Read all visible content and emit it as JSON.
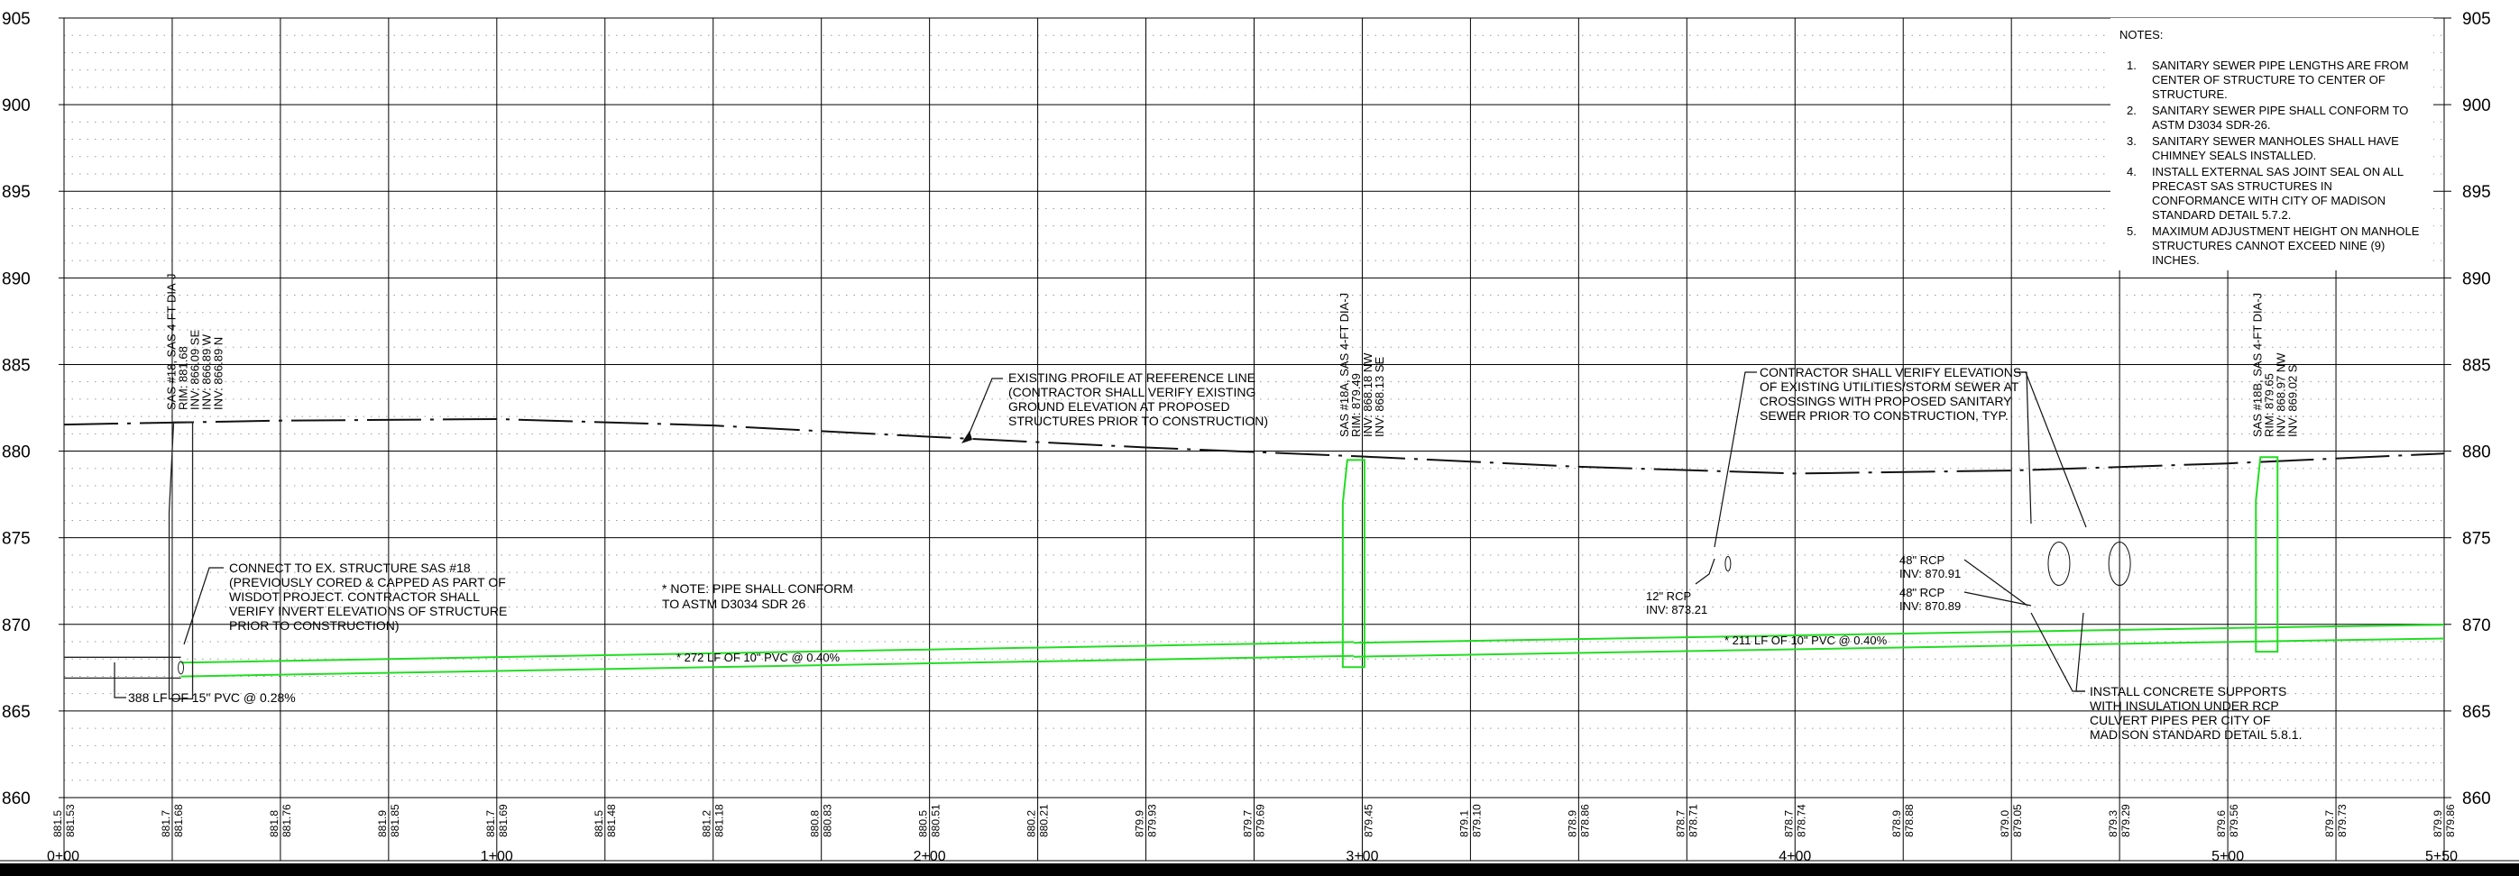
{
  "axis": {
    "y_values": [
      905,
      900,
      895,
      890,
      885,
      880,
      875,
      870,
      865,
      860
    ],
    "x_labels": [
      "0+00",
      "1+00",
      "2+00",
      "3+00",
      "4+00",
      "5+00",
      "5+50"
    ],
    "bottom_pairs": [
      [
        "881.5",
        "881.53"
      ],
      [
        "881.7",
        "881.68"
      ],
      [
        "881.8",
        "881.76"
      ],
      [
        "881.9",
        "881.85"
      ],
      [
        "881.7",
        "881.69"
      ],
      [
        "881.5",
        "881.48"
      ],
      [
        "881.2",
        "881.18"
      ],
      [
        "880.8",
        "880.83"
      ],
      [
        "880.5",
        "880.51"
      ],
      [
        "880.2",
        "880.21"
      ],
      [
        "879.9",
        "879.93"
      ],
      [
        "879.7",
        "879.69"
      ],
      [
        "",
        "879.45"
      ],
      [
        "879.1",
        "879.10"
      ],
      [
        "878.9",
        "878.86"
      ],
      [
        "878.7",
        "878.71"
      ],
      [
        "878.7",
        "878.74"
      ],
      [
        "878.9",
        "878.88"
      ],
      [
        "879.0",
        "879.05"
      ],
      [
        "879.3",
        "879.29"
      ],
      [
        "879.6",
        "879.56"
      ],
      [
        "879.7",
        "879.73"
      ],
      [
        "879.9",
        "879.86"
      ]
    ]
  },
  "chart_data": {
    "type": "line",
    "x_unit": "station (ft)",
    "y_unit": "elevation (ft)",
    "xlim": [
      0,
      550
    ],
    "ylim": [
      860,
      905
    ],
    "grid": true,
    "series": [
      {
        "name": "existing-ground",
        "style": "dashed",
        "x": [
          0,
          50,
          100,
          150,
          200,
          250,
          300,
          350,
          400,
          450,
          500,
          550
        ],
        "y": [
          881.53,
          881.76,
          881.85,
          881.48,
          880.83,
          880.21,
          879.69,
          879.1,
          878.71,
          878.88,
          879.29,
          879.86
        ]
      },
      {
        "name": "pipe-15in-top",
        "style": "thin",
        "x": [
          0,
          27
        ],
        "y": [
          868.1,
          868.1
        ]
      },
      {
        "name": "pipe-15in-bottom",
        "style": "thin",
        "x": [
          0,
          27
        ],
        "y": [
          866.9,
          866.9
        ]
      },
      {
        "name": "pipe-10in-272-top",
        "style": "green",
        "x": [
          27,
          298
        ],
        "y": [
          867.79,
          868.98
        ]
      },
      {
        "name": "pipe-10in-272-invert",
        "style": "green",
        "x": [
          27,
          298
        ],
        "y": [
          866.99,
          868.18
        ]
      },
      {
        "name": "pipe-10in-211-top",
        "style": "green",
        "x": [
          298,
          509
        ],
        "y": [
          868.93,
          869.82
        ]
      },
      {
        "name": "pipe-10in-211-invert",
        "style": "green",
        "x": [
          298,
          509
        ],
        "y": [
          868.13,
          869.02
        ]
      },
      {
        "name": "pipe-10in-ext-top",
        "style": "green",
        "x": [
          509,
          550
        ],
        "y": [
          869.82,
          869.98
        ]
      },
      {
        "name": "pipe-10in-ext-invert",
        "style": "green",
        "x": [
          509,
          550
        ],
        "y": [
          869.02,
          869.18
        ]
      }
    ]
  },
  "structures": [
    {
      "id": "sas18",
      "lines": [
        "SAS #18, SAS 4-FT DIA-J",
        "RIM: 881.68",
        "INV: 866.09 SE",
        "INV: 866.89 W",
        "INV: 866.89 N"
      ]
    },
    {
      "id": "sas18a",
      "lines": [
        "SAS #18A, SAS 4-FT DIA-J",
        "RIM: 879.49",
        "INV: 868.18 NW",
        "INV: 868.13 SE"
      ]
    },
    {
      "id": "sas18b",
      "lines": [
        "SAS #18B, SAS 4-FT DIA-J",
        "RIM: 879.65",
        "INV: 868.97 NW",
        "INV: 869.02 S"
      ]
    }
  ],
  "annotations": {
    "existing_profile": [
      "EXISTING PROFILE AT REFERENCE LINE",
      "(CONTRACTOR SHALL VERIFY EXISTING",
      "GROUND ELEVATION AT PROPOSED",
      "STRUCTURES PRIOR TO CONSTRUCTION)"
    ],
    "connect": [
      "CONNECT TO EX. STRUCTURE SAS #18",
      "(PREVIOUSLY CORED & CAPPED AS PART OF",
      "WISDOT PROJECT.  CONTRACTOR SHALL",
      "VERIFY INVERT ELEVATIONS OF STRUCTURE",
      "PRIOR TO CONSTRUCTION)"
    ],
    "pipe_note": [
      "* NOTE: PIPE SHALL CONFORM",
      "TO ASTM D3034 SDR 26"
    ],
    "contractor_verify": [
      "CONTRACTOR SHALL VERIFY ELEVATIONS",
      "OF EXISTING UTILITIES/STORM SEWER AT",
      "CROSSINGS WITH PROPOSED SANITARY",
      "SEWER PRIOR TO CONSTRUCTION, TYP."
    ],
    "concrete": [
      "INSTALL CONCRETE SUPPORTS",
      "WITH INSULATION UNDER RCP",
      "CULVERT PIPES PER CITY OF",
      "MADISON STANDARD DETAIL 5.8.1."
    ],
    "rcp12": [
      "12\" RCP",
      "INV: 873.21"
    ],
    "rcp48a": [
      "48\" RCP",
      "INV: 870.91"
    ],
    "rcp48b": [
      "48\" RCP",
      "INV: 870.89"
    ],
    "pipe_388": "388 LF OF 15\" PVC @ 0.28%",
    "pipe_272": "* 272 LF OF 10\" PVC @ 0.40%",
    "pipe_211": "* 211 LF OF 10\" PVC @ 0.40%"
  },
  "notes": {
    "title": "NOTES:",
    "items": [
      {
        "num": "1.",
        "lines": [
          "SANITARY SEWER PIPE LENGTHS ARE FROM",
          "CENTER OF STRUCTURE TO CENTER OF",
          "STRUCTURE."
        ]
      },
      {
        "num": "2.",
        "lines": [
          "SANITARY SEWER PIPE SHALL CONFORM TO",
          "ASTM D3034 SDR-26."
        ]
      },
      {
        "num": "3.",
        "lines": [
          "SANITARY SEWER MANHOLES SHALL HAVE",
          "CHIMNEY SEALS INSTALLED."
        ]
      },
      {
        "num": "4.",
        "lines": [
          "INSTALL EXTERNAL SAS JOINT SEAL ON ALL",
          "PRECAST SAS STRUCTURES IN",
          "CONFORMANCE WITH CITY OF MADISON",
          "STANDARD DETAIL 5.7.2."
        ]
      },
      {
        "num": "5.",
        "lines": [
          "MAXIMUM ADJUSTMENT HEIGHT ON MANHOLE",
          "STRUCTURES CANNOT EXCEED NINE (9)",
          "INCHES."
        ]
      }
    ]
  },
  "colors": {
    "pipe": "#22dd22",
    "grid_major": "#000000",
    "grid_minor": "#9a9a9a",
    "ink": "#000000",
    "bottom_bar": "#000000"
  }
}
